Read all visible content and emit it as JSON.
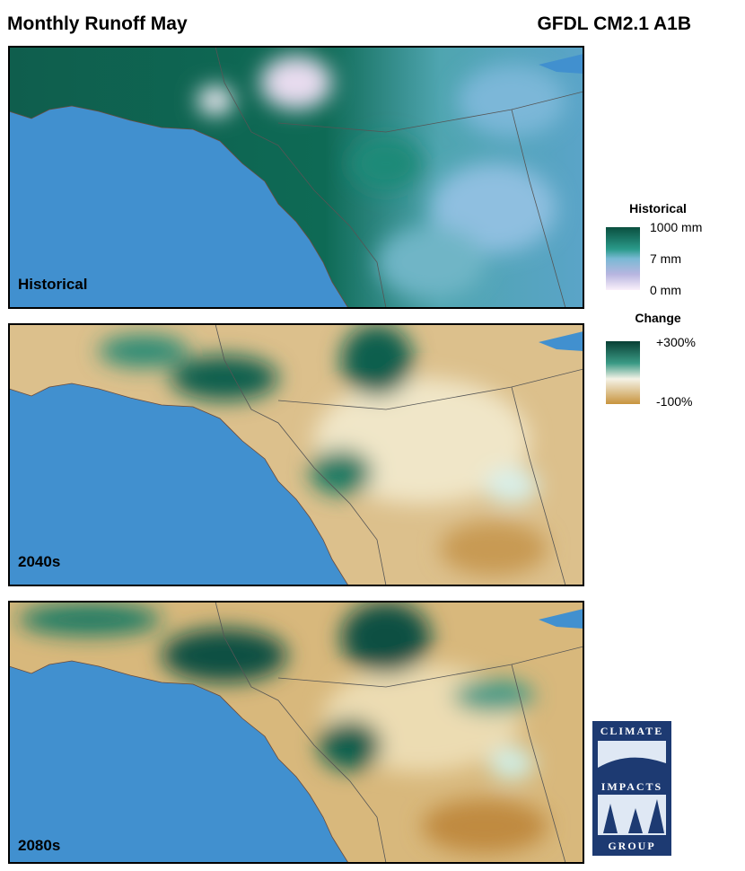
{
  "header": {
    "title": "Monthly Runoff May",
    "model": "GFDL CM2.1 A1B"
  },
  "panels": [
    {
      "label": "Historical"
    },
    {
      "label": "2040s"
    },
    {
      "label": "2080s"
    }
  ],
  "legends": [
    {
      "title": "Historical",
      "labels": [
        "1000 mm",
        "7 mm",
        "0 mm"
      ]
    },
    {
      "title": "Change",
      "labels": [
        "+300%",
        "-100%"
      ]
    }
  ],
  "logo": {
    "lines": [
      "CLIMATE",
      "IMPACTS",
      "GROUP"
    ]
  }
}
